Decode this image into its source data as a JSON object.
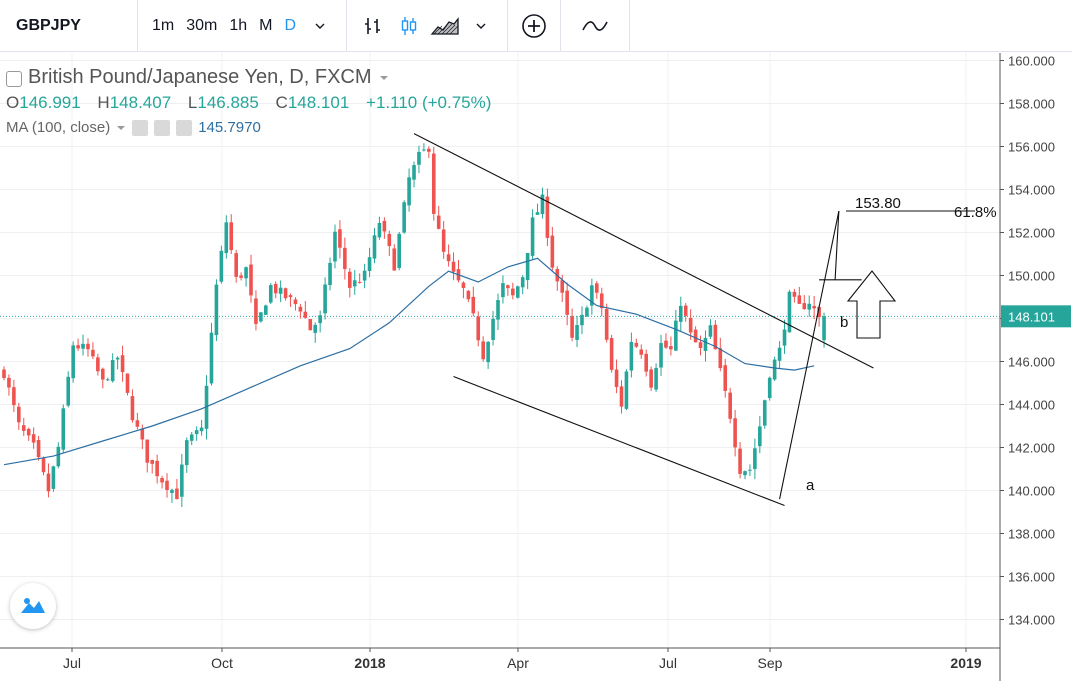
{
  "toolbar": {
    "symbol": "GBPJPY",
    "intervals": [
      "1m",
      "30m",
      "1h",
      "M",
      "D"
    ],
    "active_interval": "D"
  },
  "legend": {
    "title": "British Pound/Japanese Yen, D, FXCM",
    "open_label": "O",
    "open": "146.991",
    "high_label": "H",
    "high": "148.407",
    "low_label": "L",
    "low": "146.885",
    "close_label": "C",
    "close": "148.101",
    "change": "+1.110 (+0.75%)",
    "ma_label": "MA (100, close)",
    "ma_value": "145.7970"
  },
  "colors": {
    "up": "#26a69a",
    "down": "#ef5350",
    "ma": "#2d6fa3",
    "last_price_bg": "#26a69a",
    "grid": "#eef0f3",
    "axis_text": "#444444",
    "active_interval": "#2196f3"
  },
  "icons": [
    "chevron-down-icon",
    "bar-style-icon",
    "candle-style-icon",
    "area-style-icon",
    "add-indicator-icon",
    "compare-icon",
    "tradingview-logo-icon"
  ],
  "chart_data": {
    "type": "candlestick",
    "ylim": [
      133,
      161
    ],
    "y_ticks": [
      "160.000",
      "158.000",
      "156.000",
      "154.000",
      "152.000",
      "150.000",
      "148.000",
      "146.000",
      "144.000",
      "142.000",
      "140.000",
      "138.000",
      "136.000",
      "134.000"
    ],
    "x_ticks": [
      "Jul",
      "Oct",
      "2018",
      "Apr",
      "Jul",
      "Sep",
      "2019"
    ],
    "x_ticks_bold": [
      "2018",
      "2019"
    ],
    "last_price": 148.101,
    "last_price_label": "148.101",
    "close_path": [
      [
        0,
        145.5
      ],
      [
        3,
        143.0
      ],
      [
        6,
        142.0
      ],
      [
        9,
        140.0
      ],
      [
        11,
        142.0
      ],
      [
        14,
        146.8
      ],
      [
        17,
        146.5
      ],
      [
        20,
        145.0
      ],
      [
        23,
        146.2
      ],
      [
        26,
        143.5
      ],
      [
        29,
        141.5
      ],
      [
        32,
        140.5
      ],
      [
        35,
        139.8
      ],
      [
        37,
        142.2
      ],
      [
        40,
        142.8
      ],
      [
        43,
        149.5
      ],
      [
        45,
        152.5
      ],
      [
        47,
        149.8
      ],
      [
        49,
        150.3
      ],
      [
        51,
        147.5
      ],
      [
        54,
        149.5
      ],
      [
        57,
        149.0
      ],
      [
        60,
        148.5
      ],
      [
        62,
        147.5
      ],
      [
        64,
        148.0
      ],
      [
        67,
        152.0
      ],
      [
        70,
        149.5
      ],
      [
        73,
        150.0
      ],
      [
        76,
        152.5
      ],
      [
        79,
        150.5
      ],
      [
        82,
        154.5
      ],
      [
        84,
        155.5
      ],
      [
        86,
        156.0
      ],
      [
        87,
        153.0
      ],
      [
        89,
        151.0
      ],
      [
        91,
        150.0
      ],
      [
        93,
        149.3
      ],
      [
        95,
        148.0
      ],
      [
        97,
        146.3
      ],
      [
        99,
        148.0
      ],
      [
        101,
        149.5
      ],
      [
        103,
        149.0
      ],
      [
        105,
        150.0
      ],
      [
        107,
        152.5
      ],
      [
        109,
        153.5
      ],
      [
        111,
        150.5
      ],
      [
        113,
        149.0
      ],
      [
        115,
        147.0
      ],
      [
        117,
        148.0
      ],
      [
        119,
        149.5
      ],
      [
        121,
        148.5
      ],
      [
        123,
        145.5
      ],
      [
        125,
        144.0
      ],
      [
        127,
        147.0
      ],
      [
        129,
        146.5
      ],
      [
        131,
        145.0
      ],
      [
        133,
        146.8
      ],
      [
        135,
        146.5
      ],
      [
        137,
        148.8
      ],
      [
        139,
        147.2
      ],
      [
        141,
        146.5
      ],
      [
        143,
        147.5
      ],
      [
        145,
        145.5
      ],
      [
        147,
        143.5
      ],
      [
        149,
        141.0
      ],
      [
        151,
        141.0
      ],
      [
        153,
        143.0
      ],
      [
        155,
        145.5
      ],
      [
        157,
        146.5
      ],
      [
        159,
        149.0
      ],
      [
        161,
        148.5
      ],
      [
        163,
        148.8
      ],
      [
        165,
        148.0
      ],
      [
        166,
        148.1
      ]
    ],
    "ma_path": [
      [
        0,
        141.2
      ],
      [
        10,
        141.6
      ],
      [
        20,
        142.3
      ],
      [
        30,
        143.0
      ],
      [
        40,
        143.8
      ],
      [
        50,
        144.8
      ],
      [
        60,
        145.8
      ],
      [
        70,
        146.6
      ],
      [
        78,
        147.8
      ],
      [
        86,
        149.5
      ],
      [
        90,
        150.2
      ],
      [
        96,
        149.7
      ],
      [
        102,
        150.4
      ],
      [
        108,
        150.8
      ],
      [
        114,
        149.6
      ],
      [
        120,
        148.6
      ],
      [
        128,
        148.2
      ],
      [
        136,
        147.5
      ],
      [
        144,
        146.7
      ],
      [
        150,
        145.9
      ],
      [
        156,
        145.7
      ],
      [
        160,
        145.6
      ],
      [
        164,
        145.8
      ]
    ],
    "trendline_upper": [
      [
        83,
        156.6
      ],
      [
        176,
        145.7
      ]
    ],
    "trendline_lower": [
      [
        91,
        145.3
      ],
      [
        158,
        139.3
      ]
    ],
    "wave_a_line": [
      [
        157,
        139.6
      ],
      [
        169,
        153.0
      ]
    ],
    "wave_b_line": [
      [
        165,
        149.8
      ],
      [
        172,
        149.8
      ]
    ],
    "target_label": "153.80",
    "fib_label": "61.8%",
    "wave_a_label": "a",
    "wave_b_label": "b"
  }
}
